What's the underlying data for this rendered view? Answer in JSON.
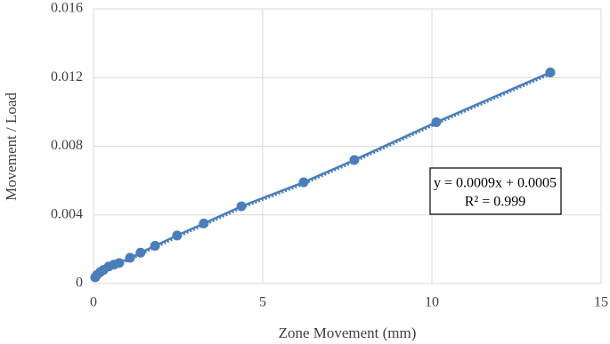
{
  "chart_data": {
    "type": "scatter",
    "x_label": "Zone Movement (mm)",
    "y_label": "Movement  / Load",
    "series": [
      {
        "color": "#4a7ebb",
        "x": [
          0.05,
          0.1,
          0.2,
          0.3,
          0.45,
          0.6,
          0.76,
          1.08,
          1.39,
          1.82,
          2.47,
          3.26,
          4.37,
          6.21,
          7.71,
          10.13,
          13.5
        ],
        "values": [
          0.00036,
          0.0005,
          0.00067,
          0.0008,
          0.001,
          0.0011,
          0.0012,
          0.0015,
          0.0018,
          0.0022,
          0.0028,
          0.0035,
          0.0045,
          0.0059,
          0.0072,
          0.0094,
          0.0123
        ]
      }
    ],
    "trendline": {
      "equation": "y = 0.0009x + 0.0005",
      "r_squared": "R² = 0.999"
    },
    "xlim": [
      0,
      15
    ],
    "xticks": [
      0,
      5,
      10,
      15
    ],
    "ylim": [
      0,
      0.016
    ],
    "yticks": [
      0,
      0.004,
      0.008,
      0.012,
      0.016
    ],
    "grid": true
  }
}
